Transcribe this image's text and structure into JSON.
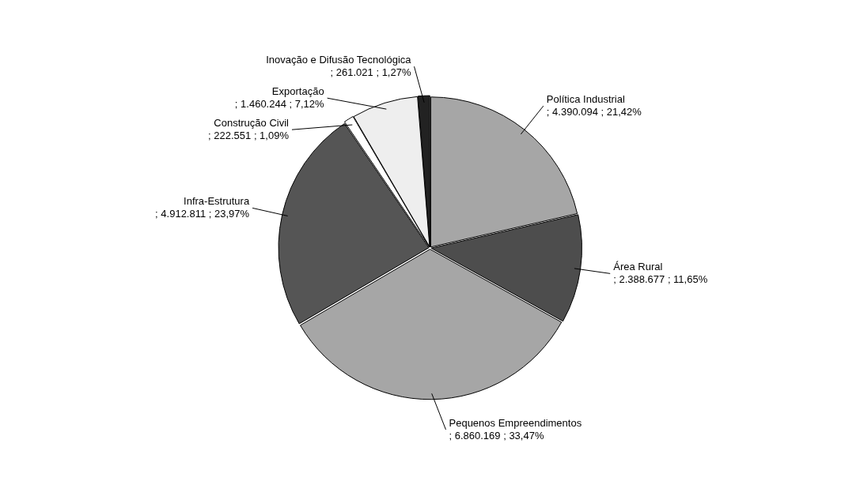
{
  "chart_data": {
    "type": "pie",
    "categories": [
      "Política Industrial",
      "Área Rural",
      "Pequenos Empreendimentos",
      "Infra-Estrutura",
      "Construção Civil",
      "Exportação",
      "Inovação e Difusão Tecnológica"
    ],
    "values": [
      4390094,
      2388677,
      6860169,
      4912811,
      222551,
      1460244,
      261021
    ],
    "value_labels": [
      "; 4.390.094 ; 21,42%",
      "; 2.388.677 ; 11,65%",
      "; 6.860.169 ; 33,47%",
      "; 4.912.811 ; 23,97%",
      "; 222.551 ; 1,09%",
      "; 1.460.244 ; 7,12%",
      "; 261.021 ; 1,27%"
    ],
    "colors": [
      "#a6a6a6",
      "#4d4d4d",
      "#a6a6a6",
      "#555555",
      "#ffffff",
      "#eeeeee",
      "#222222"
    ],
    "legend": false
  }
}
